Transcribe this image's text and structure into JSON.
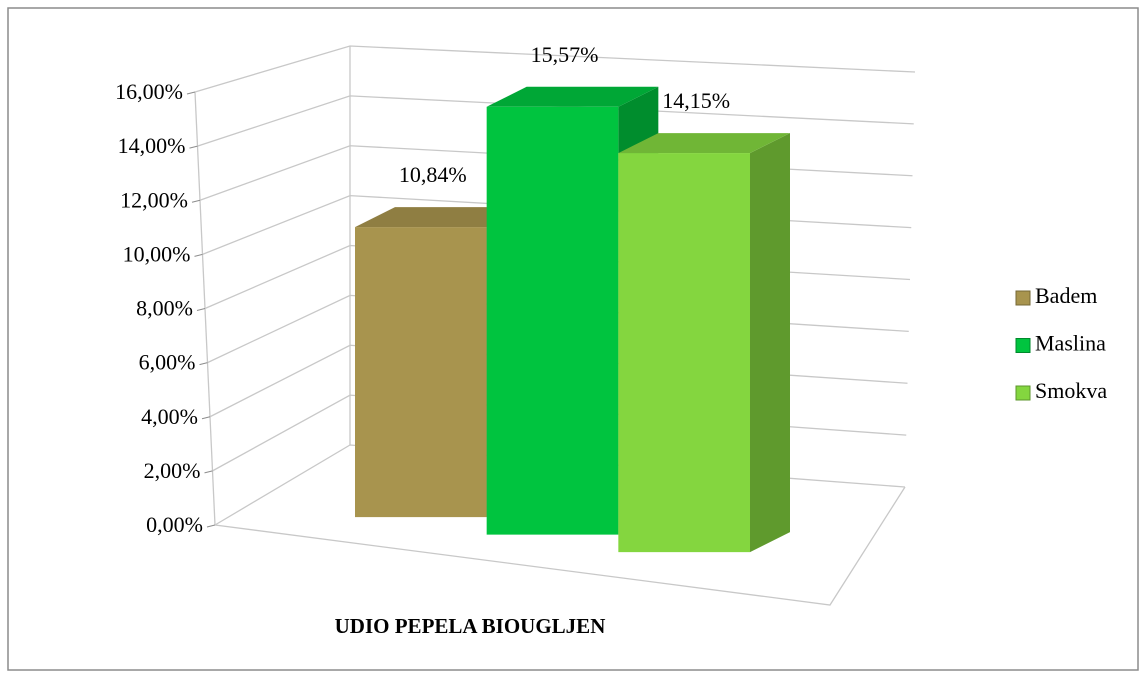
{
  "chart_data": {
    "type": "bar",
    "categories": [
      "UDIO PEPELA BIOUGLJEN"
    ],
    "series": [
      {
        "name": "Badem",
        "color": "#a8944e",
        "values": [
          10.84
        ],
        "value_labels": [
          "10,84%"
        ]
      },
      {
        "name": "Maslina",
        "color": "#00c43f",
        "values": [
          15.57
        ],
        "value_labels": [
          "15,57%"
        ]
      },
      {
        "name": "Smokva",
        "color": "#84d63f",
        "values": [
          14.15
        ],
        "value_labels": [
          "14,15%"
        ]
      }
    ],
    "ylim": [
      0,
      16
    ],
    "yticks": [
      {
        "value": 0,
        "label": "0,00%"
      },
      {
        "value": 2,
        "label": "2,00%"
      },
      {
        "value": 4,
        "label": "4,00%"
      },
      {
        "value": 6,
        "label": "6,00%"
      },
      {
        "value": 8,
        "label": "8,00%"
      },
      {
        "value": 10,
        "label": "10,00%"
      },
      {
        "value": 12,
        "label": "12,00%"
      },
      {
        "value": 14,
        "label": "14,00%"
      },
      {
        "value": 16,
        "label": "16,00%"
      }
    ],
    "grid": true,
    "legend": "right"
  }
}
